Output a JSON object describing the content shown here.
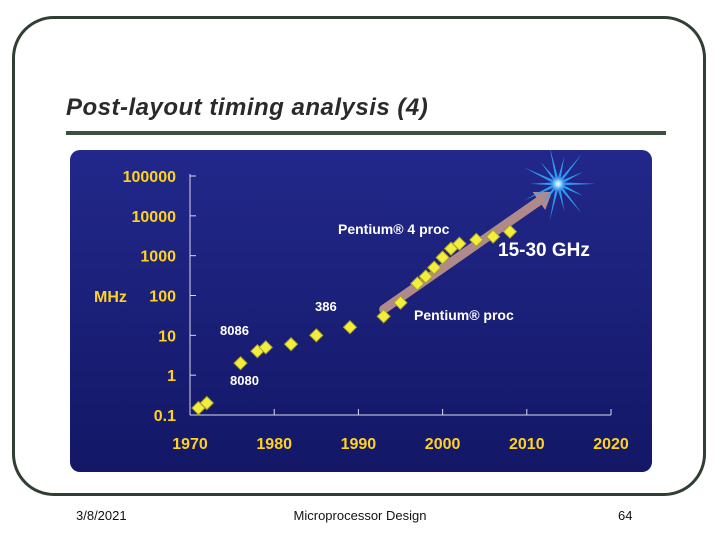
{
  "slide": {
    "title": "Post-layout timing analysis (4)",
    "footer": {
      "date": "3/8/2021",
      "center": "Microprocessor Design",
      "page": "64"
    }
  },
  "colors": {
    "panel_top": "#22288a",
    "panel_bottom": "#131766",
    "axis_text": "#ffd21f",
    "annotation_text": "#ffffff",
    "marker_fill": "#f3ee3c",
    "marker_stroke": "#a7a22a",
    "trend_arrow": "#b08a8a",
    "burst": "#2ea8ff",
    "frame": "#2f3f33",
    "title_rule": "#3d5040"
  },
  "chart_data": {
    "type": "scatter",
    "title": "",
    "xlabel": "",
    "ylabel": "MHz",
    "xlim": [
      1970,
      2020
    ],
    "ylim": [
      0.1,
      100000
    ],
    "y_scale": "log",
    "x_ticks": [
      1970,
      1980,
      1990,
      2000,
      2010,
      2020
    ],
    "x_tick_labels": [
      "1970",
      "1980",
      "1990",
      "2000",
      "2010",
      "2020"
    ],
    "y_ticks": [
      0.1,
      1,
      10,
      100,
      1000,
      10000,
      100000
    ],
    "y_tick_labels": [
      "0.1",
      "1",
      "10",
      "100",
      "1000",
      "10000",
      "100000"
    ],
    "grid": false,
    "series": [
      {
        "x": [
          1971,
          1972,
          1976,
          1978,
          1979,
          1982,
          1985,
          1989,
          1993,
          1995,
          1997,
          1998,
          1999,
          2000,
          2001,
          2002,
          2004,
          2006,
          2008
        ],
        "y": [
          0.15,
          0.2,
          2,
          4,
          5,
          6,
          10,
          16,
          30,
          66,
          200,
          300,
          500,
          900,
          1500,
          2000,
          2500,
          3000,
          4000
        ]
      }
    ],
    "trend": {
      "from": [
        1993,
        45
      ],
      "to": [
        2013,
        40000
      ]
    },
    "annotations": {
      "i8086": "8086",
      "i8080": "8080",
      "i386": "386",
      "pentium": "Pentium® proc",
      "pentium4": "Pentium® 4 proc",
      "freq_range": "15-30 GHz"
    }
  }
}
